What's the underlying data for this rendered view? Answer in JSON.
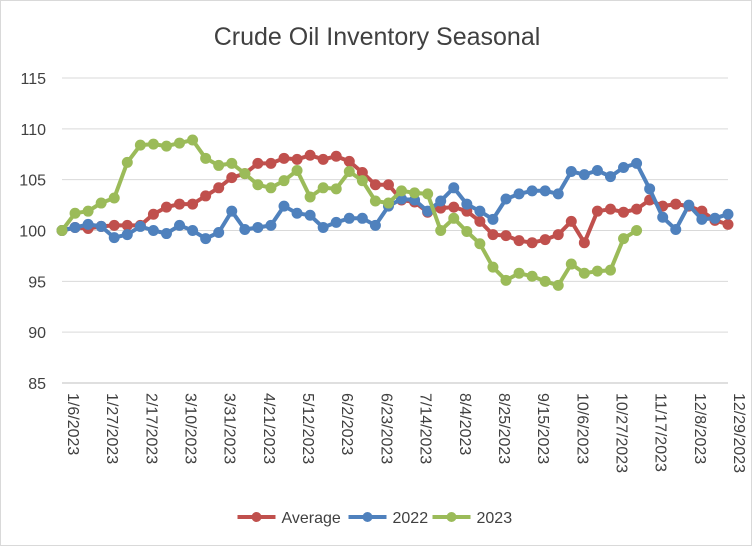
{
  "chart_data": {
    "type": "line",
    "title": "Crude Oil Inventory Seasonal",
    "xlabel": "",
    "ylabel": "",
    "ylim": [
      85,
      115
    ],
    "y_ticks": [
      "85",
      "90",
      "95",
      "100",
      "105",
      "110",
      "115"
    ],
    "x_tick_labels": [
      "1/6/2023",
      "1/27/2023",
      "2/17/2023",
      "3/10/2023",
      "3/31/2023",
      "4/21/2023",
      "5/12/2023",
      "6/2/2023",
      "6/23/2023",
      "7/14/2023",
      "8/4/2023",
      "8/25/2023",
      "9/15/2023",
      "10/6/2023",
      "10/27/2023",
      "11/17/2023",
      "12/8/2023",
      "12/29/2023"
    ],
    "x_tick_every": 3,
    "grid": true,
    "legend_position": "bottom",
    "series": [
      {
        "name": "Average",
        "color": "#c0504d",
        "values": [
          100.0,
          100.3,
          100.2,
          100.4,
          100.5,
          100.5,
          100.5,
          101.6,
          102.3,
          102.6,
          102.6,
          103.4,
          104.2,
          105.2,
          105.6,
          106.6,
          106.6,
          107.1,
          107.0,
          107.4,
          107.0,
          107.3,
          106.8,
          105.7,
          104.5,
          104.5,
          103.0,
          102.8,
          101.8,
          102.2,
          102.3,
          101.9,
          100.9,
          99.6,
          99.5,
          99.0,
          98.8,
          99.1,
          99.6,
          100.9,
          98.8,
          101.9,
          102.1,
          101.8,
          102.1,
          103.0,
          102.4,
          102.6,
          102.4,
          101.9,
          101.0,
          100.6
        ]
      },
      {
        "name": "2022",
        "color": "#4f81bd",
        "values": [
          100.0,
          100.3,
          100.6,
          100.4,
          99.3,
          99.6,
          100.4,
          100.0,
          99.7,
          100.5,
          100.0,
          99.2,
          99.8,
          101.9,
          100.1,
          100.3,
          100.5,
          102.4,
          101.7,
          101.5,
          100.3,
          100.8,
          101.2,
          101.2,
          100.5,
          102.4,
          103.1,
          103.0,
          101.9,
          102.9,
          104.2,
          102.6,
          101.9,
          101.1,
          103.1,
          103.6,
          103.9,
          103.9,
          103.6,
          105.8,
          105.5,
          105.9,
          105.3,
          106.2,
          106.6,
          104.1,
          101.3,
          100.1,
          102.5,
          101.1,
          101.2,
          101.6
        ]
      },
      {
        "name": "2023",
        "color": "#9bbb59",
        "values": [
          100.0,
          101.7,
          101.9,
          102.7,
          103.2,
          106.7,
          108.4,
          108.5,
          108.3,
          108.6,
          108.9,
          107.1,
          106.4,
          106.6,
          105.6,
          104.5,
          104.2,
          104.9,
          105.9,
          103.3,
          104.2,
          104.1,
          105.8,
          104.9,
          102.9,
          102.7,
          103.9,
          103.7,
          103.6,
          100.0,
          101.2,
          99.9,
          98.7,
          96.4,
          95.1,
          95.8,
          95.5,
          95.0,
          94.6,
          96.7,
          95.8,
          96.0,
          96.1,
          99.2,
          100.0
        ]
      }
    ]
  }
}
